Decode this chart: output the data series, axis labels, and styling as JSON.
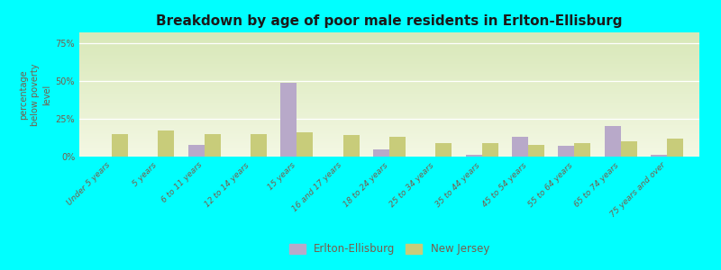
{
  "title": "Breakdown by age of poor male residents in Erlton-Ellisburg",
  "ylabel": "percentage\nbelow poverty\nlevel",
  "categories": [
    "Under 5 years",
    "5 years",
    "6 to 11 years",
    "12 to 14 years",
    "15 years",
    "16 and 17 years",
    "18 to 24 years",
    "25 to 34 years",
    "35 to 44 years",
    "45 to 54 years",
    "55 to 64 years",
    "65 to 74 years",
    "75 years and over"
  ],
  "erlton_values": [
    0,
    0,
    8,
    0,
    49,
    0,
    5,
    0,
    1,
    13,
    7,
    20,
    1
  ],
  "nj_values": [
    15,
    17,
    15,
    15,
    16,
    14,
    13,
    9,
    9,
    8,
    9,
    10,
    12
  ],
  "erlton_color": "#b8a9c9",
  "nj_color": "#c8cc7a",
  "background_top": "#d8e8b8",
  "background_bottom": "#f4f8e4",
  "outer_background": "#00ffff",
  "title_color": "#1a1a1a",
  "axis_text_color": "#7a5c4a",
  "yticks": [
    0,
    25,
    50,
    75
  ],
  "ylim": [
    0,
    82
  ],
  "bar_width": 0.35,
  "legend_erlton": "Erlton-Ellisburg",
  "legend_nj": "New Jersey"
}
